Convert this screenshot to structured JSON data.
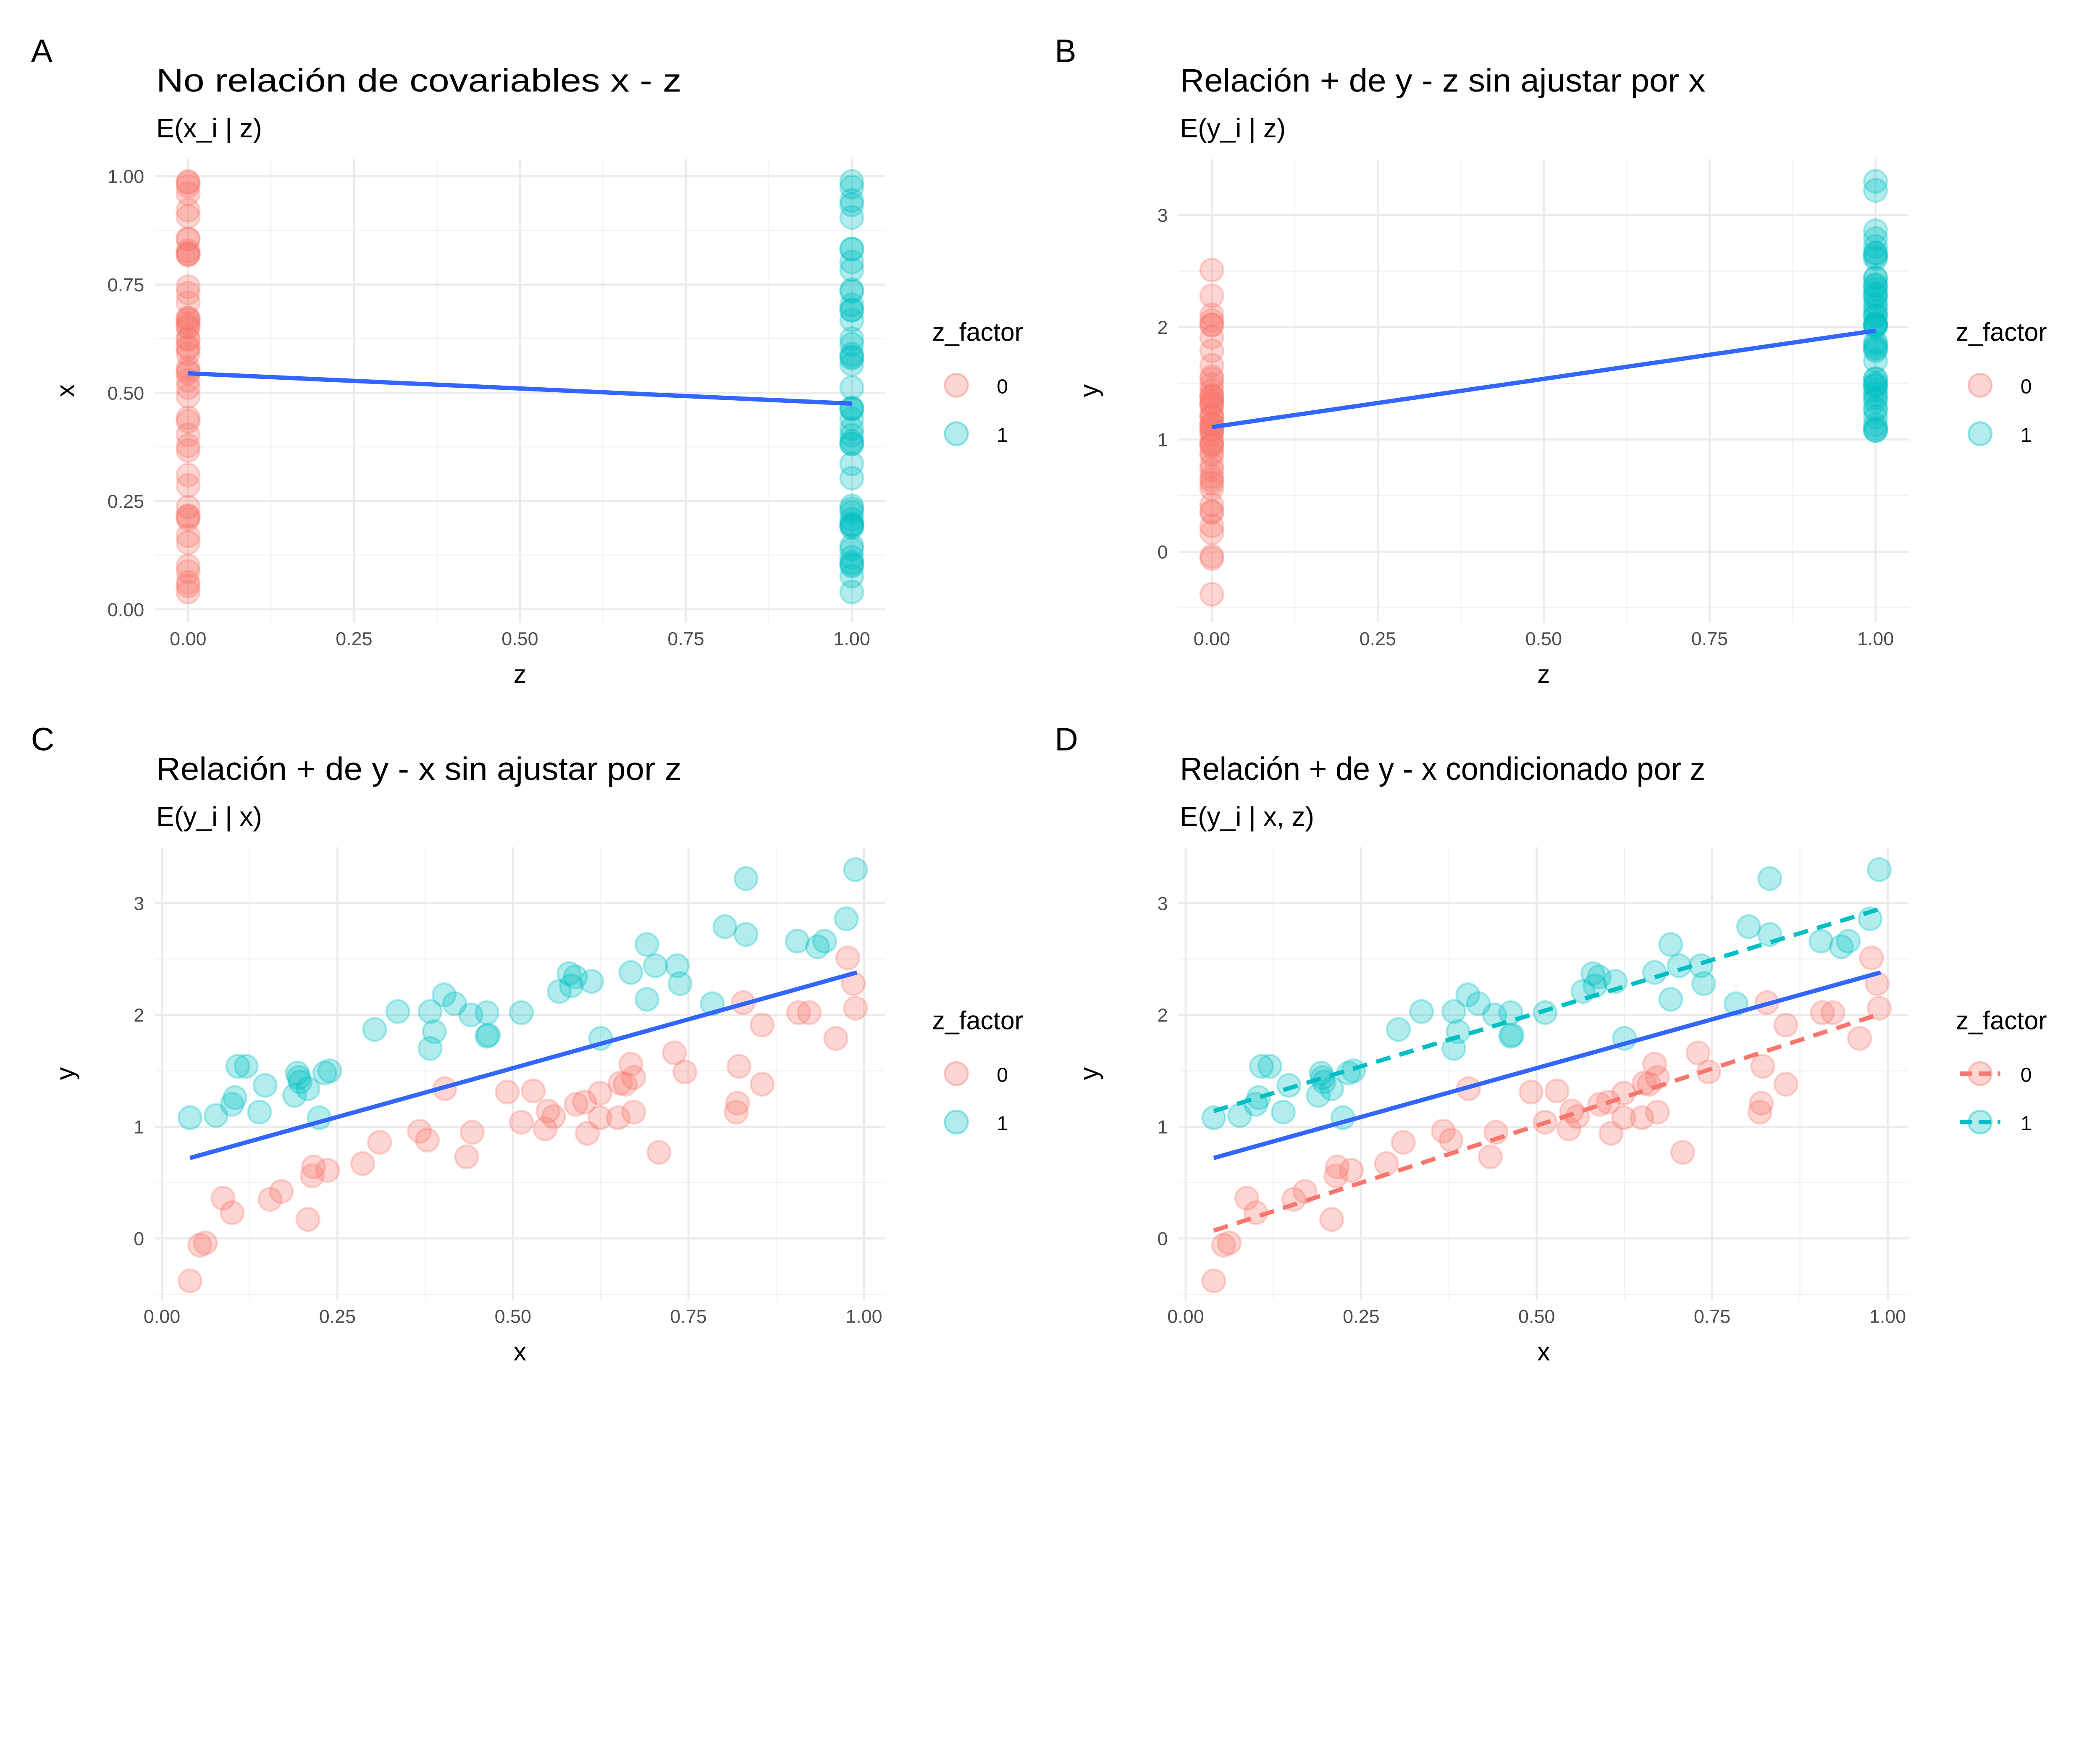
{
  "chart_data": [
    {
      "panel": "A",
      "type": "scatter",
      "title": "No relación de covariables x - z",
      "subtitle": "E(x_i | z)",
      "xvar": "z",
      "yvar": "x",
      "xlabel": "z",
      "ylabel": "x",
      "xlim": [
        -0.05,
        1.05
      ],
      "ylim": [
        -0.03,
        1.04
      ],
      "xticks": [
        0,
        0.25,
        0.5,
        0.75,
        1
      ],
      "xtick_labels": [
        "0.00",
        "0.25",
        "0.50",
        "0.75",
        "1.00"
      ],
      "yticks": [
        0,
        0.25,
        0.5,
        0.75,
        1
      ],
      "ytick_labels": [
        "0.00",
        "0.25",
        "0.50",
        "0.75",
        "1.00"
      ],
      "fits": [
        {
          "group": "all",
          "style": "solid",
          "x": [
            0,
            1
          ],
          "y": [
            0.545,
            0.475
          ]
        }
      ],
      "legend_style": "point"
    },
    {
      "panel": "B",
      "type": "scatter",
      "title": "Relación + de y - z sin ajustar por x",
      "subtitle": "E(y_i | z)",
      "xvar": "z",
      "yvar": "y",
      "xlabel": "z",
      "ylabel": "y",
      "xlim": [
        -0.05,
        1.05
      ],
      "ylim": [
        -0.63,
        3.5
      ],
      "xticks": [
        0,
        0.25,
        0.5,
        0.75,
        1
      ],
      "xtick_labels": [
        "0.00",
        "0.25",
        "0.50",
        "0.75",
        "1.00"
      ],
      "yticks": [
        0,
        1,
        2,
        3
      ],
      "ytick_labels": [
        "0",
        "1",
        "2",
        "3"
      ],
      "fits": [
        {
          "group": "all",
          "style": "solid",
          "x": [
            0,
            1
          ],
          "y": [
            1.11,
            1.97
          ]
        }
      ],
      "legend_style": "point"
    },
    {
      "panel": "C",
      "type": "scatter",
      "title": "Relación + de y - x sin ajustar por z",
      "subtitle": "E(y_i | x)",
      "xvar": "x",
      "yvar": "y",
      "xlabel": "x",
      "ylabel": "y",
      "xlim": [
        -0.01,
        1.03
      ],
      "ylim": [
        -0.55,
        3.5
      ],
      "xticks": [
        0,
        0.25,
        0.5,
        0.75,
        1
      ],
      "xtick_labels": [
        "0.00",
        "0.25",
        "0.50",
        "0.75",
        "1.00"
      ],
      "yticks": [
        0,
        1,
        2,
        3
      ],
      "ytick_labels": [
        "0",
        "1",
        "2",
        "3"
      ],
      "fits": [
        {
          "group": "all",
          "style": "solid",
          "x": [
            0.04,
            0.99
          ],
          "y": [
            0.72,
            2.38
          ]
        }
      ],
      "legend_style": "point"
    },
    {
      "panel": "D",
      "type": "scatter",
      "title": "Relación + de y - x condicionado por z",
      "subtitle": "E(y_i | x, z)",
      "xvar": "x",
      "yvar": "y",
      "xlabel": "x",
      "ylabel": "y",
      "xlim": [
        -0.01,
        1.03
      ],
      "ylim": [
        -0.55,
        3.5
      ],
      "xticks": [
        0,
        0.25,
        0.5,
        0.75,
        1
      ],
      "xtick_labels": [
        "0.00",
        "0.25",
        "0.50",
        "0.75",
        "1.00"
      ],
      "yticks": [
        0,
        1,
        2,
        3
      ],
      "ytick_labels": [
        "0",
        "1",
        "2",
        "3"
      ],
      "fits": [
        {
          "group": "all",
          "style": "solid",
          "x": [
            0.04,
            0.99
          ],
          "y": [
            0.72,
            2.38
          ]
        },
        {
          "group": "0",
          "style": "dashed",
          "x": [
            0.04,
            0.99
          ],
          "y": [
            0.07,
            2.01
          ]
        },
        {
          "group": "1",
          "style": "dashed",
          "x": [
            0.04,
            0.99
          ],
          "y": [
            1.14,
            2.95
          ]
        }
      ],
      "legend_style": "point-line"
    }
  ],
  "legend": {
    "title": "z_factor",
    "entries": [
      "0",
      "1"
    ]
  },
  "colors": {
    "0": "#F8766D",
    "1": "#00BFC4",
    "fit": "#3366FF"
  },
  "points": [
    {
      "x": 0.04,
      "y": 1.08,
      "z": 1
    },
    {
      "x": 0.077,
      "y": 1.1,
      "z": 1
    },
    {
      "x": 0.1,
      "y": 1.2,
      "z": 1
    },
    {
      "x": 0.104,
      "y": 1.26,
      "z": 1
    },
    {
      "x": 0.108,
      "y": 1.54,
      "z": 1
    },
    {
      "x": 0.12,
      "y": 1.54,
      "z": 1
    },
    {
      "x": 0.139,
      "y": 1.13,
      "z": 1
    },
    {
      "x": 0.147,
      "y": 1.37,
      "z": 1
    },
    {
      "x": 0.189,
      "y": 1.28,
      "z": 1
    },
    {
      "x": 0.193,
      "y": 1.48,
      "z": 1
    },
    {
      "x": 0.195,
      "y": 1.44,
      "z": 1
    },
    {
      "x": 0.197,
      "y": 1.4,
      "z": 1
    },
    {
      "x": 0.208,
      "y": 1.34,
      "z": 1
    },
    {
      "x": 0.224,
      "y": 1.08,
      "z": 1
    },
    {
      "x": 0.232,
      "y": 1.48,
      "z": 1
    },
    {
      "x": 0.239,
      "y": 1.5,
      "z": 1
    },
    {
      "x": 0.303,
      "y": 1.87,
      "z": 1
    },
    {
      "x": 0.336,
      "y": 2.03,
      "z": 1
    },
    {
      "x": 0.382,
      "y": 2.03,
      "z": 1
    },
    {
      "x": 0.382,
      "y": 1.7,
      "z": 1
    },
    {
      "x": 0.388,
      "y": 1.85,
      "z": 1
    },
    {
      "x": 0.402,
      "y": 2.18,
      "z": 1
    },
    {
      "x": 0.417,
      "y": 2.1,
      "z": 1
    },
    {
      "x": 0.44,
      "y": 2.0,
      "z": 1
    },
    {
      "x": 0.463,
      "y": 1.81,
      "z": 1
    },
    {
      "x": 0.465,
      "y": 1.82,
      "z": 1
    },
    {
      "x": 0.463,
      "y": 2.02,
      "z": 1
    },
    {
      "x": 0.512,
      "y": 2.02,
      "z": 1
    },
    {
      "x": 0.566,
      "y": 2.21,
      "z": 1
    },
    {
      "x": 0.58,
      "y": 2.37,
      "z": 1
    },
    {
      "x": 0.589,
      "y": 2.34,
      "z": 1
    },
    {
      "x": 0.583,
      "y": 2.26,
      "z": 1
    },
    {
      "x": 0.612,
      "y": 2.3,
      "z": 1
    },
    {
      "x": 0.625,
      "y": 1.79,
      "z": 1
    },
    {
      "x": 0.668,
      "y": 2.38,
      "z": 1
    },
    {
      "x": 0.691,
      "y": 2.63,
      "z": 1
    },
    {
      "x": 0.691,
      "y": 2.14,
      "z": 1
    },
    {
      "x": 0.703,
      "y": 2.44,
      "z": 1
    },
    {
      "x": 0.734,
      "y": 2.44,
      "z": 1
    },
    {
      "x": 0.738,
      "y": 2.28,
      "z": 1
    },
    {
      "x": 0.784,
      "y": 2.1,
      "z": 1
    },
    {
      "x": 0.802,
      "y": 2.79,
      "z": 1
    },
    {
      "x": 0.832,
      "y": 2.72,
      "z": 1
    },
    {
      "x": 0.832,
      "y": 3.22,
      "z": 1
    },
    {
      "x": 0.905,
      "y": 2.66,
      "z": 1
    },
    {
      "x": 0.934,
      "y": 2.61,
      "z": 1
    },
    {
      "x": 0.944,
      "y": 2.66,
      "z": 1
    },
    {
      "x": 0.975,
      "y": 2.86,
      "z": 1
    },
    {
      "x": 0.988,
      "y": 3.3,
      "z": 1
    },
    {
      "x": 0.04,
      "y": -0.38,
      "z": 0
    },
    {
      "x": 0.054,
      "y": -0.06,
      "z": 0
    },
    {
      "x": 0.062,
      "y": -0.04,
      "z": 0
    },
    {
      "x": 0.087,
      "y": 0.36,
      "z": 0
    },
    {
      "x": 0.1,
      "y": 0.23,
      "z": 0
    },
    {
      "x": 0.154,
      "y": 0.35,
      "z": 0
    },
    {
      "x": 0.17,
      "y": 0.42,
      "z": 0
    },
    {
      "x": 0.208,
      "y": 0.17,
      "z": 0
    },
    {
      "x": 0.216,
      "y": 0.64,
      "z": 0
    },
    {
      "x": 0.214,
      "y": 0.56,
      "z": 0
    },
    {
      "x": 0.236,
      "y": 0.61,
      "z": 0
    },
    {
      "x": 0.286,
      "y": 0.67,
      "z": 0
    },
    {
      "x": 0.31,
      "y": 0.86,
      "z": 0
    },
    {
      "x": 0.367,
      "y": 0.96,
      "z": 0
    },
    {
      "x": 0.378,
      "y": 0.88,
      "z": 0
    },
    {
      "x": 0.403,
      "y": 1.34,
      "z": 0
    },
    {
      "x": 0.434,
      "y": 0.73,
      "z": 0
    },
    {
      "x": 0.442,
      "y": 0.95,
      "z": 0
    },
    {
      "x": 0.492,
      "y": 1.31,
      "z": 0
    },
    {
      "x": 0.512,
      "y": 1.04,
      "z": 0
    },
    {
      "x": 0.529,
      "y": 1.32,
      "z": 0
    },
    {
      "x": 0.55,
      "y": 1.14,
      "z": 0
    },
    {
      "x": 0.546,
      "y": 0.98,
      "z": 0
    },
    {
      "x": 0.558,
      "y": 1.09,
      "z": 0
    },
    {
      "x": 0.59,
      "y": 1.2,
      "z": 0
    },
    {
      "x": 0.602,
      "y": 1.22,
      "z": 0
    },
    {
      "x": 0.606,
      "y": 0.94,
      "z": 0
    },
    {
      "x": 0.624,
      "y": 1.3,
      "z": 0
    },
    {
      "x": 0.624,
      "y": 1.08,
      "z": 0
    },
    {
      "x": 0.65,
      "y": 1.08,
      "z": 0
    },
    {
      "x": 0.653,
      "y": 1.39,
      "z": 0
    },
    {
      "x": 0.66,
      "y": 1.38,
      "z": 0
    },
    {
      "x": 0.668,
      "y": 1.56,
      "z": 0
    },
    {
      "x": 0.672,
      "y": 1.44,
      "z": 0
    },
    {
      "x": 0.672,
      "y": 1.13,
      "z": 0
    },
    {
      "x": 0.708,
      "y": 0.77,
      "z": 0
    },
    {
      "x": 0.73,
      "y": 1.66,
      "z": 0
    },
    {
      "x": 0.745,
      "y": 1.49,
      "z": 0
    },
    {
      "x": 0.818,
      "y": 1.13,
      "z": 0
    },
    {
      "x": 0.82,
      "y": 1.21,
      "z": 0
    },
    {
      "x": 0.822,
      "y": 1.54,
      "z": 0
    },
    {
      "x": 0.828,
      "y": 2.11,
      "z": 0
    },
    {
      "x": 0.855,
      "y": 1.38,
      "z": 0
    },
    {
      "x": 0.855,
      "y": 1.91,
      "z": 0
    },
    {
      "x": 0.907,
      "y": 2.02,
      "z": 0
    },
    {
      "x": 0.922,
      "y": 2.02,
      "z": 0
    },
    {
      "x": 0.96,
      "y": 1.79,
      "z": 0
    },
    {
      "x": 0.977,
      "y": 2.51,
      "z": 0
    },
    {
      "x": 0.985,
      "y": 2.28,
      "z": 0
    },
    {
      "x": 0.988,
      "y": 2.06,
      "z": 0
    }
  ]
}
